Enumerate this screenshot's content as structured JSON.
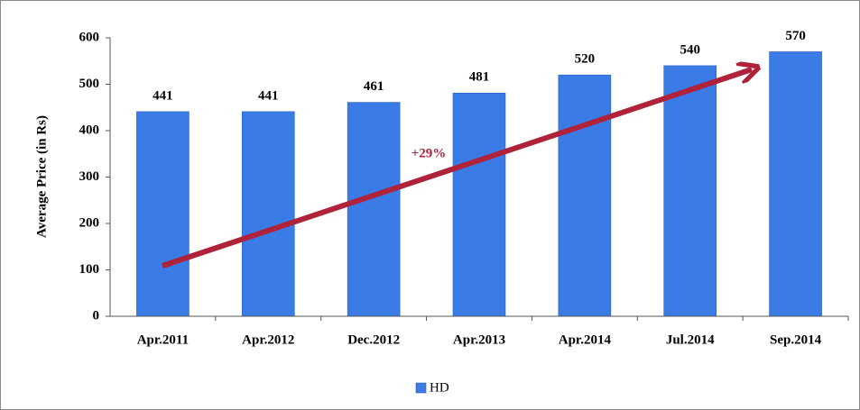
{
  "chart_data": {
    "type": "bar",
    "y_label": "Average Price (in Rs)",
    "categories": [
      "Apr.2011",
      "Apr.2012",
      "Dec.2012",
      "Apr.2013",
      "Apr.2014",
      "Jul.2014",
      "Sep.2014"
    ],
    "series": [
      {
        "name": "HD",
        "color": "#3a7be6",
        "values": [
          441,
          441,
          461,
          481,
          520,
          540,
          570
        ]
      }
    ],
    "ylim": [
      0,
      600
    ],
    "yticks": [
      0,
      100,
      200,
      300,
      400,
      500,
      600
    ],
    "annotation": "+29%",
    "legend": "bottom",
    "grid": false
  }
}
